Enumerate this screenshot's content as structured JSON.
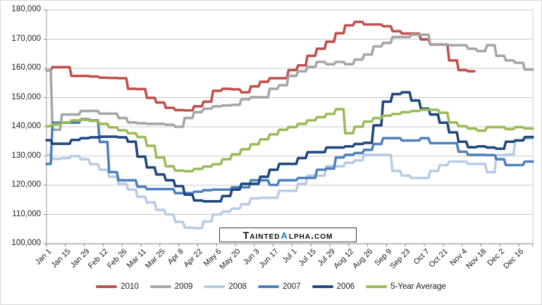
{
  "watermark": {
    "text_part1": "Tainted",
    "alpha_char": "α",
    "text_part2": "lpha.com",
    "alpha_color": "#1f7bc4"
  },
  "axes": {
    "y_tick_labels": [
      "100,000",
      "110,000",
      "120,000",
      "130,000",
      "140,000",
      "150,000",
      "160,000",
      "170,000",
      "180,000"
    ],
    "x_tick_labels": [
      "Jan 1",
      "Jan 15",
      "Jan 29",
      "Feb 12",
      "Feb 26",
      "Mar 11",
      "Mar 25",
      "Apr 8",
      "Apr 22",
      "May 6",
      "May 20",
      "Jun 3",
      "Jun 17",
      "Jul 1",
      "Jul 15",
      "Jul 29",
      "Aug 12",
      "Aug 26",
      "Sep 9",
      "Sep 23",
      "Oct 7",
      "Oct 21",
      "Nov 4",
      "Nov 18",
      "Dec 2",
      "Dec 16"
    ]
  },
  "chart_data": {
    "type": "line",
    "title": "",
    "xlabel": "",
    "ylabel": "",
    "ylim": [
      100000,
      180000
    ],
    "y_tick_step": 10000,
    "grid": "horizontal",
    "legend_position": "bottom",
    "x_tick_labels": [
      "Jan 1",
      "Jan 15",
      "Jan 29",
      "Feb 12",
      "Feb 26",
      "Mar 11",
      "Mar 25",
      "Apr 8",
      "Apr 22",
      "May 6",
      "May 20",
      "Jun 3",
      "Jun 17",
      "Jul 1",
      "Jul 15",
      "Jul 29",
      "Aug 12",
      "Aug 26",
      "Sep 9",
      "Sep 23",
      "Oct 7",
      "Oct 21",
      "Nov 4",
      "Nov 18",
      "Dec 2",
      "Dec 16"
    ],
    "x_resolution": "weekly",
    "series": [
      {
        "name": "2010",
        "color": "#c0504d",
        "values": [
          159300,
          160400,
          160400,
          157400,
          157400,
          157200,
          156800,
          156700,
          156600,
          153000,
          152900,
          149900,
          148300,
          146500,
          145700,
          145600,
          147000,
          148600,
          152300,
          153000,
          152800,
          151800,
          153800,
          155400,
          156600,
          156600,
          159400,
          161000,
          164300,
          166700,
          169100,
          172000,
          174700,
          175900,
          175000,
          175000,
          174400,
          172700,
          171900,
          171900,
          169900,
          168100,
          168100,
          162700,
          159400,
          159000
        ]
      },
      {
        "name": "2009",
        "color": "#a6a6a6",
        "values": [
          159300,
          139000,
          144200,
          144200,
          145400,
          145400,
          144500,
          144500,
          143000,
          141500,
          141200,
          141000,
          141000,
          140700,
          140000,
          143000,
          145000,
          146200,
          147000,
          147300,
          147500,
          149400,
          150100,
          150100,
          153000,
          154200,
          157400,
          159000,
          160500,
          162200,
          161400,
          162200,
          161400,
          163000,
          164700,
          167500,
          168700,
          170700,
          170700,
          171500,
          171500,
          168200,
          168200,
          167900,
          167900,
          166700,
          165900,
          167900,
          164300,
          162700,
          161900,
          159600
        ]
      },
      {
        "name": "2008",
        "color": "#b8cce4",
        "values": [
          130300,
          129000,
          129300,
          130000,
          128900,
          127200,
          125300,
          122900,
          120500,
          118500,
          116100,
          114100,
          111600,
          110000,
          107500,
          105500,
          105300,
          107600,
          110000,
          111000,
          112000,
          113500,
          115500,
          115700,
          115700,
          118100,
          118100,
          120500,
          123300,
          123300,
          126500,
          126500,
          127700,
          128500,
          130400,
          130400,
          130400,
          124900,
          123300,
          122500,
          122500,
          124900,
          126900,
          128100,
          128100,
          127300,
          127300,
          124500,
          130300,
          130500,
          135500,
          136000
        ]
      },
      {
        "name": "2007",
        "color": "#4f81bd",
        "values": [
          127300,
          141400,
          141400,
          141400,
          142600,
          142200,
          134800,
          124500,
          121700,
          121700,
          119500,
          118700,
          118700,
          118700,
          117300,
          117300,
          117800,
          118300,
          118500,
          118500,
          119300,
          119300,
          121700,
          121700,
          120100,
          121700,
          121700,
          122500,
          122500,
          125300,
          125700,
          129500,
          130400,
          131000,
          132100,
          134100,
          136100,
          136100,
          135300,
          135300,
          136100,
          134400,
          134400,
          134400,
          131500,
          130400,
          130400,
          130300,
          128900,
          126900,
          126900,
          128100
        ]
      },
      {
        "name": "2006",
        "color": "#1f497d",
        "values": [
          135400,
          134200,
          134200,
          135500,
          136100,
          136400,
          136600,
          136600,
          136400,
          134900,
          129800,
          126100,
          123700,
          121700,
          119700,
          116800,
          114800,
          114500,
          114500,
          116300,
          118500,
          120500,
          120500,
          122900,
          125300,
          127300,
          127300,
          129300,
          131300,
          131300,
          132900,
          132900,
          133300,
          134100,
          134500,
          140500,
          148600,
          151200,
          151800,
          149000,
          146200,
          144200,
          141400,
          138100,
          134900,
          133000,
          133300,
          132900,
          132500,
          134900,
          135300,
          136500
        ]
      },
      {
        "name": "5-Year Average",
        "color": "#9bbb59",
        "values": [
          140200,
          140800,
          141500,
          142200,
          142400,
          142000,
          141000,
          139800,
          138800,
          137800,
          136500,
          133500,
          129500,
          126500,
          125000,
          124800,
          125600,
          126400,
          127200,
          128900,
          130600,
          132300,
          134000,
          135700,
          137400,
          139000,
          139900,
          141000,
          142200,
          143300,
          144400,
          146000,
          137800,
          140000,
          141800,
          143000,
          143800,
          144400,
          145000,
          145400,
          145800,
          145800,
          144800,
          141500,
          140200,
          139400,
          138700,
          139900,
          139900,
          139200,
          139900,
          139400
        ]
      }
    ]
  }
}
